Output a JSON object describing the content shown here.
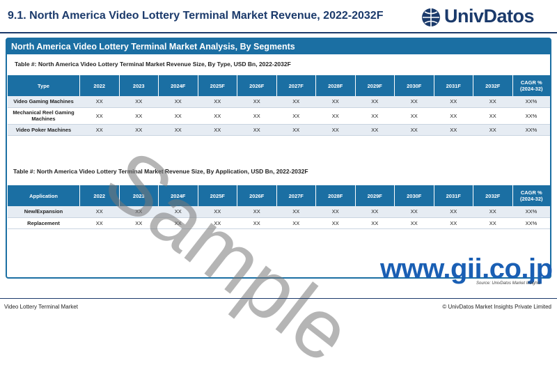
{
  "header": {
    "title": "9.1. North America Video Lottery Terminal Market Revenue, 2022-2032F",
    "logo_text": "UnivDatos"
  },
  "section": {
    "banner": "North America Video Lottery Terminal Market Analysis, By Segments"
  },
  "table_by_type": {
    "caption": "Table #: North America Video Lottery Terminal Market Revenue Size, By Type, USD Bn, 2022-2032F",
    "columns": [
      "Type",
      "2022",
      "2023",
      "2024F",
      "2025F",
      "2026F",
      "2027F",
      "2028F",
      "2029F",
      "2030F",
      "2031F",
      "2032F",
      "CAGR % (2024-32)"
    ],
    "rows": [
      {
        "label": "Video Gaming Machines",
        "values": [
          "XX",
          "XX",
          "XX",
          "XX",
          "XX",
          "XX",
          "XX",
          "XX",
          "XX",
          "XX",
          "XX",
          "XX%"
        ]
      },
      {
        "label": "Mechanical Reel Gaming Machines",
        "values": [
          "XX",
          "XX",
          "XX",
          "XX",
          "XX",
          "XX",
          "XX",
          "XX",
          "XX",
          "XX",
          "XX",
          "XX%"
        ]
      },
      {
        "label": "Video Poker Machines",
        "values": [
          "XX",
          "XX",
          "XX",
          "XX",
          "XX",
          "XX",
          "XX",
          "XX",
          "XX",
          "XX",
          "XX",
          "XX%"
        ]
      }
    ]
  },
  "table_by_application": {
    "caption": "Table #: North America Video Lottery Terminal Market Revenue Size, By Application, USD Bn, 2022-2032F",
    "columns": [
      "Application",
      "2022",
      "2023",
      "2024F",
      "2025F",
      "2026F",
      "2027F",
      "2028F",
      "2029F",
      "2030F",
      "2031F",
      "2032F",
      "CAGR % (2024-32)"
    ],
    "rows": [
      {
        "label": "New/Expansion",
        "values": [
          "XX",
          "XX",
          "XX",
          "XX",
          "XX",
          "XX",
          "XX",
          "XX",
          "XX",
          "XX",
          "XX",
          "XX%"
        ]
      },
      {
        "label": "Replacement",
        "values": [
          "XX",
          "XX",
          "XX",
          "XX",
          "XX",
          "XX",
          "XX",
          "XX",
          "XX",
          "XX",
          "XX",
          "XX%"
        ]
      }
    ]
  },
  "source_note": "Source: UnivDatos Market Insights",
  "watermark": "Sample",
  "gii_watermark": "www.gii.co.jp",
  "footer": {
    "left": "Video Lottery Terminal Market",
    "right": "© UnivDatos Market Insights Private Limited"
  },
  "colors": {
    "brand_navy": "#1b3a6b",
    "table_header_blue": "#1b6fa3",
    "row_alt": "#e6ecf3",
    "gii_blue": "#1a5fb4"
  }
}
